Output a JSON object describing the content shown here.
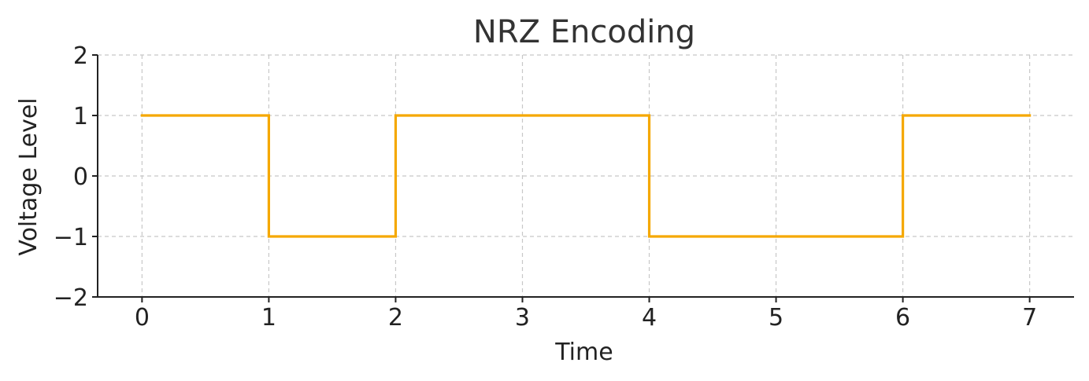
{
  "chart_data": {
    "type": "line",
    "title": "NRZ Encoding",
    "xlabel": "Time",
    "ylabel": "Voltage Level",
    "xlim": [
      -0.35,
      7.35
    ],
    "ylim": [
      -2,
      2
    ],
    "x_ticks": [
      0,
      1,
      2,
      3,
      4,
      5,
      6,
      7
    ],
    "x_tick_labels": [
      "0",
      "1",
      "2",
      "3",
      "4",
      "5",
      "6",
      "7"
    ],
    "y_ticks": [
      2,
      1,
      0,
      -1,
      -2
    ],
    "y_tick_labels": [
      "2",
      "1",
      "0",
      "−1",
      "−2"
    ],
    "grid": true,
    "line_style": "step-post",
    "series": [
      {
        "x": [
          0,
          1,
          2,
          3,
          4,
          5,
          6,
          7
        ],
        "y": [
          1,
          -1,
          1,
          1,
          -1,
          -1,
          1,
          1
        ],
        "color": "#F5A800"
      }
    ]
  }
}
